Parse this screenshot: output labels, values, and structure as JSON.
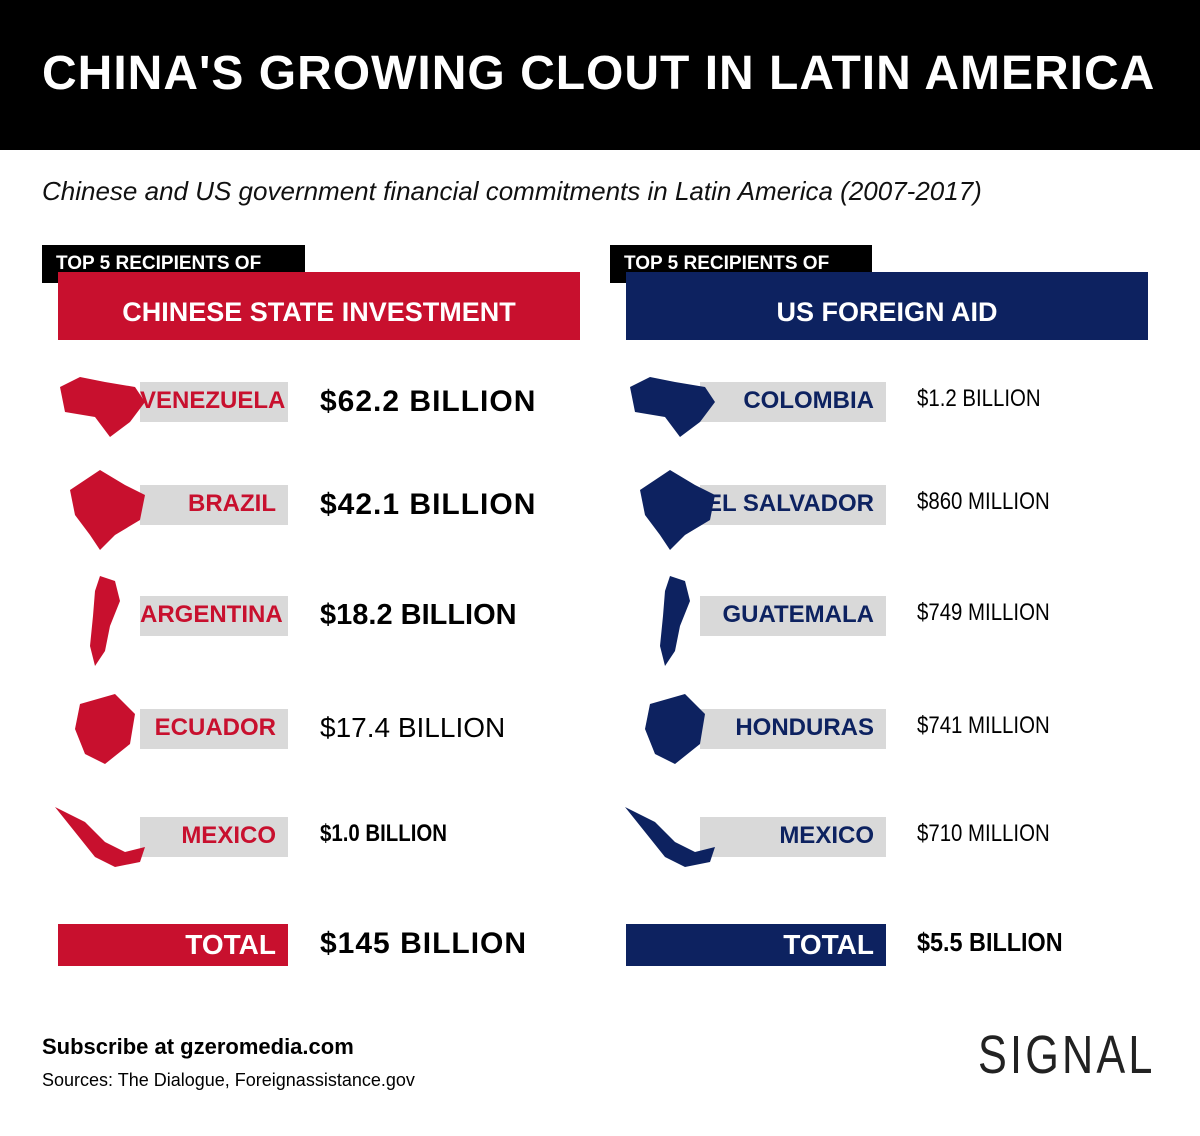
{
  "header": {
    "title": "CHINA'S GROWING CLOUT IN LATIN AMERICA"
  },
  "subtitle": "Chinese and US government financial commitments in Latin America (2007-2017)",
  "left": {
    "tag": "TOP 5 RECIPIENTS OF",
    "heading": "CHINESE STATE INVESTMENT",
    "rows": [
      {
        "country": "VENEZUELA",
        "amount": "$62.2 BILLION"
      },
      {
        "country": "BRAZIL",
        "amount": "$42.1 BILLION"
      },
      {
        "country": "ARGENTINA",
        "amount": "$18.2 BILLION"
      },
      {
        "country": "ECUADOR",
        "amount": "$17.4 BILLION"
      },
      {
        "country": "MEXICO",
        "amount": "$1.0 BILLION"
      }
    ],
    "total_label": "TOTAL",
    "total": "$145 BILLION"
  },
  "right": {
    "tag": "TOP 5 RECIPIENTS OF",
    "heading": "US FOREIGN AID",
    "rows": [
      {
        "country": "COLOMBIA",
        "amount": "$1.2 BILLION"
      },
      {
        "country": "EL SALVADOR",
        "amount": "$860 MILLION"
      },
      {
        "country": "GUATEMALA",
        "amount": "$749 MILLION"
      },
      {
        "country": "HONDURAS",
        "amount": "$741 MILLION"
      },
      {
        "country": "MEXICO",
        "amount": "$710 MILLION"
      }
    ],
    "total_label": "TOTAL",
    "total": "$5.5 BILLION"
  },
  "footer": {
    "subscribe": "Subscribe at gzeromedia.com",
    "sources": "Sources: The Dialogue, Foreignassistance.gov",
    "logo": "SIGNAL"
  }
}
